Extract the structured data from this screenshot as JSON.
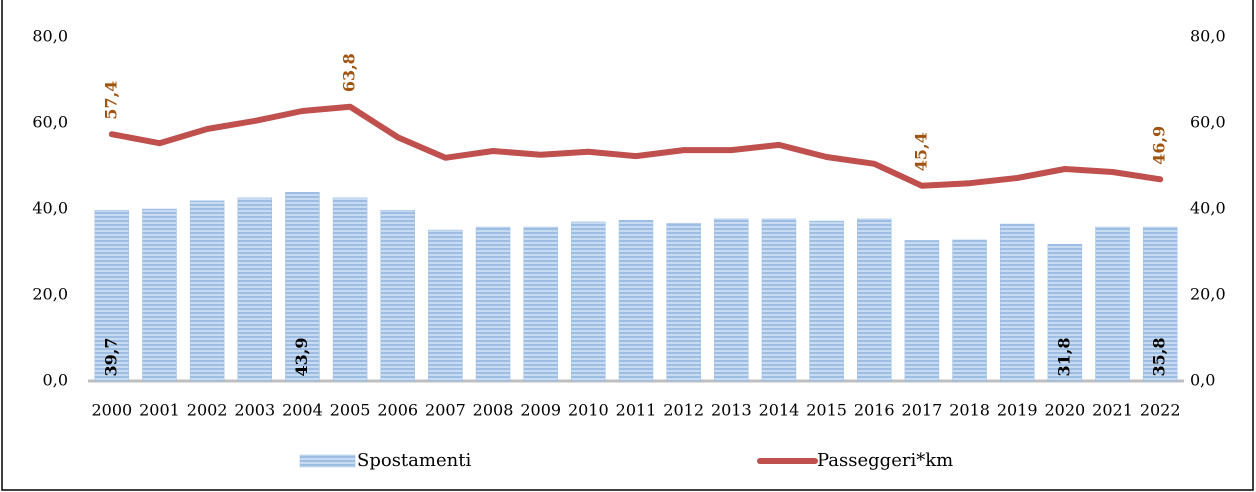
{
  "chart_data": {
    "type": "bar_line",
    "categories": [
      "2000",
      "2001",
      "2002",
      "2003",
      "2004",
      "2005",
      "2006",
      "2007",
      "2008",
      "2009",
      "2010",
      "2011",
      "2012",
      "2013",
      "2014",
      "2015",
      "2016",
      "2017",
      "2018",
      "2019",
      "2020",
      "2021",
      "2022"
    ],
    "series": [
      {
        "name": "Spostamenti",
        "type": "bar",
        "color": "#9dbde3",
        "axis": "y",
        "values": [
          39.7,
          40.0,
          41.9,
          42.6,
          43.9,
          42.6,
          39.7,
          35.1,
          35.8,
          35.8,
          37.0,
          37.4,
          36.7,
          37.7,
          37.7,
          37.2,
          37.7,
          32.7,
          32.8,
          36.5,
          31.8,
          35.8,
          35.8
        ],
        "value_labels": [
          "39,7",
          null,
          null,
          null,
          "43,9",
          null,
          null,
          null,
          null,
          null,
          null,
          null,
          null,
          null,
          null,
          null,
          null,
          null,
          null,
          null,
          "31,8",
          null,
          "35,8"
        ]
      },
      {
        "name": "Passeggeri*km",
        "type": "line",
        "color": "#c0504d",
        "label_color": "#a0520f",
        "axis": "y2",
        "values": [
          57.4,
          55.3,
          58.6,
          60.5,
          62.8,
          63.8,
          56.7,
          51.9,
          53.5,
          52.6,
          53.3,
          52.3,
          53.7,
          53.7,
          54.9,
          52.1,
          50.5,
          45.4,
          46.0,
          47.2,
          49.3,
          48.6,
          46.9
        ],
        "value_labels": [
          "57,4",
          null,
          null,
          null,
          null,
          "63,8",
          null,
          null,
          null,
          null,
          null,
          null,
          null,
          null,
          null,
          null,
          null,
          "45,4",
          null,
          null,
          null,
          null,
          "46,9"
        ]
      }
    ],
    "ylim": [
      0,
      80
    ],
    "yticks": [
      {
        "value": 0,
        "label": "0,0"
      },
      {
        "value": 20,
        "label": "20,0"
      },
      {
        "value": 40,
        "label": "40,0"
      },
      {
        "value": 60,
        "label": "60,0"
      },
      {
        "value": 80,
        "label": "80,0"
      }
    ],
    "y2lim": [
      0,
      80
    ],
    "y2ticks": [
      {
        "value": 0,
        "label": "0,0"
      },
      {
        "value": 20,
        "label": "20,0"
      },
      {
        "value": 40,
        "label": "40,0"
      },
      {
        "value": 60,
        "label": "60,0"
      },
      {
        "value": 80,
        "label": "80,0"
      }
    ],
    "legend": "bottom"
  }
}
